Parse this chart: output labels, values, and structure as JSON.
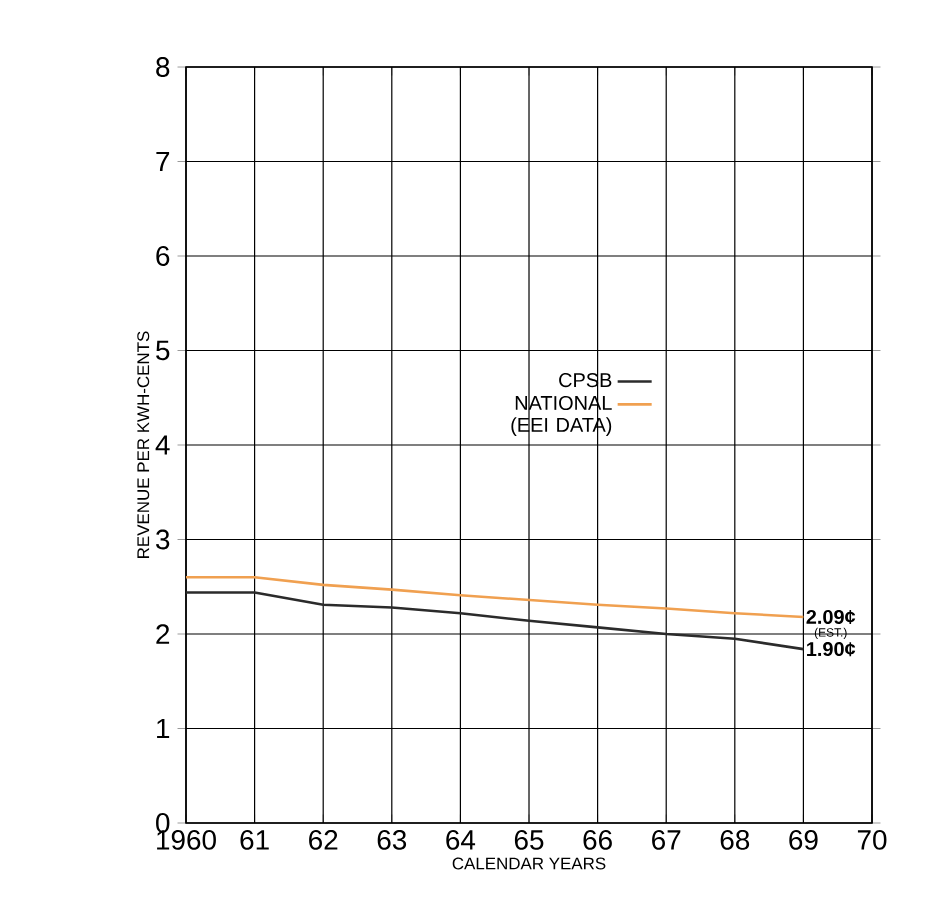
{
  "chart_data": {
    "type": "line",
    "xlabel": "CALENDAR YEARS",
    "ylabel": "REVENUE PER KWH-CENTS",
    "x": [
      1960,
      1961,
      1962,
      1963,
      1964,
      1965,
      1966,
      1967,
      1968,
      1969
    ],
    "series": [
      {
        "name": "CPSB",
        "color": "#2b2b2b",
        "values": [
          2.44,
          2.44,
          2.31,
          2.28,
          2.22,
          2.14,
          2.07,
          2.0,
          1.95,
          1.84
        ]
      },
      {
        "name": "NATIONAL (EEI DATA)",
        "color": "#f0a050",
        "values": [
          2.6,
          2.6,
          2.52,
          2.47,
          2.41,
          2.36,
          2.31,
          2.27,
          2.22,
          2.18
        ]
      }
    ],
    "xlim": [
      1960,
      1970
    ],
    "ylim": [
      0,
      8
    ],
    "xticks": [
      1960,
      {
        "value": 1961,
        "label": "61"
      },
      {
        "value": 1962,
        "label": "62"
      },
      {
        "value": 1963,
        "label": "63"
      },
      {
        "value": 1964,
        "label": "64"
      },
      {
        "value": 1965,
        "label": "65"
      },
      {
        "value": 1966,
        "label": "66"
      },
      {
        "value": 1967,
        "label": "67"
      },
      {
        "value": 1968,
        "label": "68"
      },
      {
        "value": 1969,
        "label": "69"
      },
      {
        "value": 1970,
        "label": "70"
      }
    ],
    "yticks": [
      0,
      1,
      2,
      3,
      4,
      5,
      6,
      7,
      8
    ],
    "grid": true,
    "legend": "center",
    "marker": "none",
    "line_style": "solid",
    "annotations": [
      {
        "text": "2.09¢",
        "x": 1969,
        "y": 2.18
      },
      "(EST.)",
      {
        "text": "1.90¢",
        "x": 1969,
        "y": 1.84
      }
    ]
  }
}
